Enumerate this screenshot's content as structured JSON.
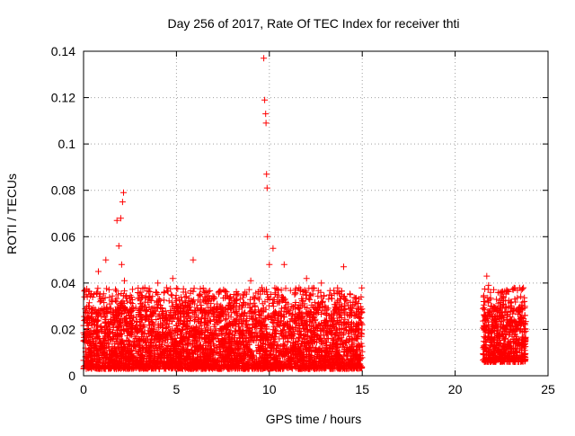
{
  "chart_data": {
    "type": "scatter",
    "title": "Day 256 of 2017, Rate Of TEC Index for receiver thti",
    "xlabel": "GPS time / hours",
    "ylabel": "ROTI / TECUs",
    "xlim": [
      0,
      25
    ],
    "ylim": [
      0,
      0.14
    ],
    "xticks": [
      0,
      5,
      10,
      15,
      20,
      25
    ],
    "xtick_labels": [
      "0",
      "5",
      "10",
      "15",
      "20",
      "25"
    ],
    "yticks": [
      0,
      0.02,
      0.04,
      0.06,
      0.08,
      0.1,
      0.12,
      0.14
    ],
    "ytick_labels": [
      "0",
      "0.02",
      "0.04",
      "0.06",
      "0.08",
      "0.1",
      "0.12",
      "0.14"
    ],
    "grid": true,
    "marker": "+",
    "color": "#ff0000",
    "series": [
      {
        "name": "ROTI",
        "x": [
          0.1,
          0.2,
          0.3,
          0.4,
          0.5,
          0.6,
          0.8,
          1.0,
          1.2,
          1.4,
          1.6,
          1.8,
          1.9,
          2.0,
          2.05,
          2.1,
          2.15,
          2.2,
          2.3,
          2.5,
          2.8,
          3.0,
          3.3,
          3.6,
          4.0,
          4.3,
          4.5,
          4.8,
          5.0,
          5.3,
          5.6,
          5.9,
          6.2,
          6.5,
          6.8,
          7.0,
          7.4,
          7.8,
          8.2,
          8.6,
          9.0,
          9.3,
          9.6,
          9.7,
          9.75,
          9.8,
          9.82,
          9.85,
          9.88,
          9.9,
          10.0,
          10.2,
          10.5,
          10.8,
          11.0,
          11.3,
          11.6,
          12.0,
          12.4,
          12.8,
          13.2,
          13.6,
          14.0,
          14.4,
          14.8,
          14.95,
          21.6,
          21.7,
          21.8,
          21.9,
          22.0,
          22.2,
          22.5,
          22.8,
          23.0,
          23.3,
          23.6,
          23.7
        ],
        "y": [
          0.012,
          0.034,
          0.018,
          0.027,
          0.015,
          0.022,
          0.045,
          0.02,
          0.05,
          0.031,
          0.016,
          0.067,
          0.056,
          0.068,
          0.048,
          0.075,
          0.079,
          0.041,
          0.025,
          0.018,
          0.021,
          0.015,
          0.038,
          0.019,
          0.04,
          0.027,
          0.013,
          0.042,
          0.03,
          0.018,
          0.021,
          0.05,
          0.016,
          0.028,
          0.011,
          0.033,
          0.02,
          0.026,
          0.035,
          0.019,
          0.041,
          0.024,
          0.038,
          0.137,
          0.119,
          0.113,
          0.109,
          0.087,
          0.081,
          0.06,
          0.048,
          0.055,
          0.022,
          0.048,
          0.031,
          0.016,
          0.038,
          0.042,
          0.025,
          0.04,
          0.019,
          0.029,
          0.047,
          0.021,
          0.013,
          0.017,
          0.032,
          0.043,
          0.039,
          0.036,
          0.028,
          0.022,
          0.018,
          0.026,
          0.024,
          0.017,
          0.026,
          0.012
        ]
      }
    ],
    "dense_bands": [
      {
        "x_range": [
          0.0,
          15.0
        ],
        "y_range": [
          0.003,
          0.03
        ],
        "description": "dense red '+' markers"
      },
      {
        "x_range": [
          21.5,
          23.8
        ],
        "y_range": [
          0.006,
          0.03
        ],
        "description": "dense red '+' markers"
      }
    ]
  }
}
